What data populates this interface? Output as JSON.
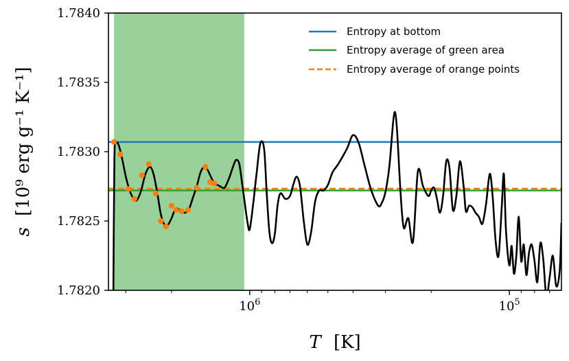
{
  "chart_data": {
    "type": "line",
    "title": "",
    "xlabel": "T",
    "xlabel_unit": "[K]",
    "ylabel": "s",
    "ylabel_unit": "[10⁹ erg g⁻¹ K⁻¹]",
    "x_scale": "log",
    "x_direction": "reversed",
    "xlim": [
      3500000.0,
      63000.0
    ],
    "ylim": [
      1.782,
      1.784
    ],
    "y_ticks": [
      1.782,
      1.7825,
      1.783,
      1.7835,
      1.784
    ],
    "y_tick_labels": [
      "1.7820",
      "1.7825",
      "1.7830",
      "1.7835",
      "1.7840"
    ],
    "x_major_ticks": [
      1000000,
      100000
    ],
    "x_tick_labels": [
      {
        "base": "10",
        "exp": "6"
      },
      {
        "base": "10",
        "exp": "5"
      }
    ],
    "x_minor_ticks": [
      3000000,
      2000000,
      900000,
      800000,
      700000,
      600000,
      500000,
      400000,
      300000,
      200000,
      90000,
      80000,
      70000
    ],
    "legend_position": "top-right",
    "shaded_region": {
      "x_start": 3330000.0,
      "x_end": 1050000.0,
      "color": "#98d199"
    },
    "series": [
      {
        "name": "",
        "color": "#000000",
        "x": [
          3350000.0,
          3320000.0,
          3280000.0,
          3200000.0,
          3100000.0,
          3000000.0,
          2900000.0,
          2800000.0,
          2720000.0,
          2620000.0,
          2520000.0,
          2420000.0,
          2340000.0,
          2260000.0,
          2200000.0,
          2140000.0,
          2070000.0,
          2000000.0,
          1930000.0,
          1860000.0,
          1790000.0,
          1720000.0,
          1660000.0,
          1600000.0,
          1540000.0,
          1480000.0,
          1420000.0,
          1370000.0,
          1330000.0,
          1300000.0,
          1250000.0,
          1200000.0,
          1160000.0,
          1130000.0,
          1100000.0,
          1080000.0,
          1050000.0,
          1020000.0,
          1000000.0,
          970000.0,
          940000.0,
          910000.0,
          880000.0,
          860000.0,
          840000.0,
          820000.0,
          800000.0,
          780000.0,
          760000.0,
          730000.0,
          700000.0,
          680000.0,
          660000.0,
          640000.0,
          620000.0,
          600000.0,
          580000.0,
          560000.0,
          540000.0,
          520000.0,
          500000.0,
          480000.0,
          460000.0,
          440000.0,
          420000.0,
          400000.0,
          380000.0,
          360000.0,
          340000.0,
          320000.0,
          310000.0,
          300000.0,
          290000.0,
          280000.0,
          275000.0,
          270000.0,
          262000.0,
          255000.0,
          245000.0,
          235000.0,
          225000.0,
          215000.0,
          205000.0,
          200000.0,
          195000.0,
          190000.0,
          185000.0,
          180000.0,
          175000.0,
          170000.0,
          165000.0,
          160000.0,
          155000.0,
          150000.0,
          147000.0,
          143000.0,
          139000.0,
          135000.0,
          131000.0,
          127000.0,
          123000.0,
          119000.0,
          116000.0,
          113000.0,
          110000.0,
          107000.0,
          105000.0,
          103000.0,
          100000.0,
          98000.0,
          96000.0,
          94000.0,
          92000.0,
          90000.0,
          88000.0,
          86000.0,
          84000.0,
          82000.0,
          80000.0,
          78000.0,
          76000.0,
          74000.0,
          72000.0,
          70000.0,
          68000.0,
          66000.0,
          64000.0,
          63000.0
        ],
        "y": [
          1.782,
          1.78295,
          1.78306,
          1.78305,
          1.78295,
          1.78282,
          1.78272,
          1.78266,
          1.78265,
          1.78272,
          1.78284,
          1.78289,
          1.78283,
          1.78268,
          1.78255,
          1.78248,
          1.78247,
          1.78252,
          1.78259,
          1.78258,
          1.78256,
          1.78258,
          1.78266,
          1.78275,
          1.78286,
          1.78289,
          1.78283,
          1.78277,
          1.78276,
          1.78275,
          1.78274,
          1.78281,
          1.78289,
          1.78294,
          1.78292,
          1.78283,
          1.78266,
          1.78249,
          1.78244,
          1.78262,
          1.78285,
          1.78306,
          1.78302,
          1.7827,
          1.78242,
          1.78234,
          1.78241,
          1.78262,
          1.7827,
          1.78266,
          1.78268,
          1.78276,
          1.78282,
          1.78275,
          1.78251,
          1.78233,
          1.78242,
          1.78264,
          1.78272,
          1.78272,
          1.78276,
          1.78285,
          1.7829,
          1.78296,
          1.78303,
          1.78312,
          1.78306,
          1.78289,
          1.78272,
          1.78261,
          1.78263,
          1.78271,
          1.78289,
          1.78322,
          1.78328,
          1.78312,
          1.78268,
          1.78245,
          1.78252,
          1.78235,
          1.78286,
          1.78275,
          1.78268,
          1.78272,
          1.78274,
          1.78266,
          1.78256,
          1.78268,
          1.78293,
          1.78288,
          1.78258,
          1.78268,
          1.78293,
          1.78275,
          1.78257,
          1.78261,
          1.7826,
          1.78256,
          1.78253,
          1.78248,
          1.78262,
          1.78284,
          1.78268,
          1.78236,
          1.78225,
          1.7826,
          1.78284,
          1.78243,
          1.78218,
          1.78232,
          1.78212,
          1.78225,
          1.78253,
          1.78221,
          1.78233,
          1.78211,
          1.78227,
          1.78233,
          1.78221,
          1.78206,
          1.78234,
          1.78222,
          1.78195,
          1.78209,
          1.78225,
          1.78203,
          1.78214,
          1.78249
        ]
      },
      {
        "name": "Entropy at bottom",
        "color": "#1f77b4",
        "style": "solid",
        "y_const": 1.78307
      },
      {
        "name": "Entropy average of green area",
        "color": "#2ca02c",
        "style": "solid",
        "y_const": 1.78272
      },
      {
        "name": "Entropy average of orange points",
        "color": "#ff7f0e",
        "style": "dashed",
        "y_const": 1.782733
      },
      {
        "name": "",
        "color": "#ff7f0e",
        "style": "markers",
        "x": [
          3330000.0,
          3150000.0,
          2930000.0,
          2780000.0,
          2600000.0,
          2450000.0,
          2300000.0,
          2200000.0,
          2100000.0,
          2000000.0,
          1920000.0,
          1830000.0,
          1730000.0,
          1600000.0,
          1480000.0,
          1420000.0,
          1370000.0
        ],
        "y": [
          1.78307,
          1.78298,
          1.78273,
          1.78266,
          1.78283,
          1.78291,
          1.7827,
          1.7825,
          1.78246,
          1.78261,
          1.78258,
          1.78257,
          1.78258,
          1.78274,
          1.78289,
          1.78278,
          1.78277
        ]
      }
    ]
  }
}
